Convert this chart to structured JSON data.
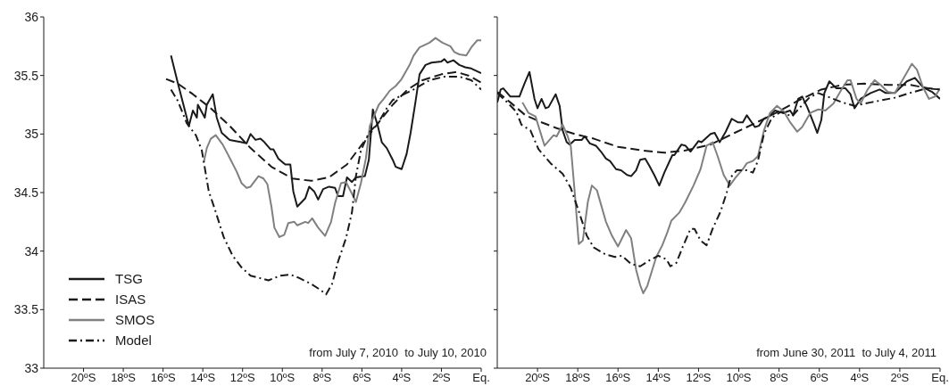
{
  "chart_data": [
    {
      "type": "line",
      "xlim": [
        -22,
        0
      ],
      "ylim": [
        33,
        36
      ],
      "xticks": [
        {
          "value": -20,
          "label": "20ºS"
        },
        {
          "value": -18,
          "label": "18ºS"
        },
        {
          "value": -16,
          "label": "16ºS"
        },
        {
          "value": -14,
          "label": "14ºS"
        },
        {
          "value": -12,
          "label": "12ºS"
        },
        {
          "value": -10,
          "label": "10ºS"
        },
        {
          "value": -8,
          "label": "8ºS"
        },
        {
          "value": -6,
          "label": "6ºS"
        },
        {
          "value": -4,
          "label": "4ºS"
        },
        {
          "value": -2,
          "label": "2ºS"
        },
        {
          "value": 0,
          "label": "Eq."
        }
      ],
      "yticks": [
        33,
        33.5,
        34,
        34.5,
        35,
        35.5,
        36
      ],
      "legend": "bottom left",
      "annotations": [
        "from July 7, 2010  to July 10, 2010"
      ],
      "series": [
        {
          "name": "TSG",
          "color": "#1a1a1a",
          "line_style": "solid",
          "x": [
            -15.6,
            -15.25,
            -14.7,
            -14.5,
            -14.3,
            -14.25,
            -13.9,
            -13.8,
            -13.5,
            -13.3,
            -13.05,
            -12.65,
            -12.05,
            -11.8,
            -11.6,
            -11.35,
            -11.1,
            -10.9,
            -10.6,
            -10.45,
            -10.2,
            -10.0,
            -9.85,
            -9.6,
            -9.45,
            -9.25,
            -8.85,
            -8.65,
            -8.4,
            -8.2,
            -7.95,
            -7.65,
            -7.35,
            -7.2,
            -6.95,
            -6.75,
            -6.5,
            -6.3,
            -5.85,
            -5.65,
            -5.45,
            -5.2,
            -5.0,
            -4.75,
            -4.45,
            -4.3,
            -4.0,
            -3.75,
            -3.55,
            -3.3,
            -3.1,
            -2.8,
            -2.5,
            -2.0,
            -1.85,
            -1.7,
            -1.4,
            -1.1,
            -0.8,
            -0.5,
            0
          ],
          "values": [
            35.67,
            35.43,
            35.07,
            35.2,
            35.14,
            35.25,
            35.14,
            35.25,
            35.34,
            35.14,
            35.01,
            34.95,
            34.93,
            34.92,
            35.0,
            34.95,
            34.96,
            34.93,
            34.87,
            34.87,
            34.79,
            34.76,
            34.74,
            34.74,
            34.51,
            34.38,
            34.45,
            34.55,
            34.51,
            34.44,
            34.53,
            34.55,
            34.54,
            34.47,
            34.47,
            34.63,
            34.59,
            34.63,
            34.64,
            34.78,
            35.21,
            35.07,
            34.93,
            34.88,
            34.78,
            34.72,
            34.7,
            34.83,
            35.01,
            35.28,
            35.51,
            35.59,
            35.61,
            35.62,
            35.64,
            35.61,
            35.63,
            35.59,
            35.57,
            35.56,
            35.52
          ]
        },
        {
          "name": "ISAS",
          "color": "#1a1a1a",
          "line_style": "dashed",
          "x": [
            -15.85,
            -15.25,
            -14.5,
            -13.6,
            -12.65,
            -11.6,
            -10.55,
            -9.5,
            -8.55,
            -7.65,
            -6.75,
            -6.0,
            -5.2,
            -4.45,
            -3.7,
            -2.95,
            -2.0,
            -1.25,
            -0.65,
            0
          ],
          "values": [
            35.47,
            35.43,
            35.34,
            35.22,
            35.07,
            34.88,
            34.72,
            34.62,
            34.6,
            34.63,
            34.74,
            34.91,
            35.09,
            35.25,
            35.38,
            35.46,
            35.51,
            35.53,
            35.5,
            35.44
          ]
        },
        {
          "name": "SMOS",
          "color": "#808080",
          "line_style": "solid",
          "x": [
            -13.95,
            -13.8,
            -13.6,
            -13.35,
            -13.0,
            -12.6,
            -12.3,
            -12.05,
            -11.8,
            -11.6,
            -11.2,
            -10.95,
            -10.75,
            -10.55,
            -10.4,
            -10.15,
            -9.9,
            -9.7,
            -9.4,
            -9.25,
            -8.85,
            -8.7,
            -8.5,
            -8.2,
            -7.85,
            -7.55,
            -7.35,
            -7.05,
            -6.8,
            -6.5,
            -6.3,
            -6.05,
            -5.8,
            -5.6,
            -5.35,
            -5.15,
            -4.9,
            -4.6,
            -4.3,
            -4.0,
            -3.6,
            -3.4,
            -3.1,
            -2.6,
            -2.3,
            -1.95,
            -1.55,
            -1.35,
            -1.1,
            -0.75,
            -0.5,
            -0.2,
            0
          ],
          "values": [
            34.76,
            34.88,
            34.96,
            34.99,
            34.91,
            34.78,
            34.68,
            34.58,
            34.54,
            34.55,
            34.64,
            34.62,
            34.57,
            34.38,
            34.2,
            34.12,
            34.14,
            34.24,
            34.25,
            34.22,
            34.25,
            34.24,
            34.28,
            34.2,
            34.13,
            34.25,
            34.41,
            34.58,
            34.59,
            34.49,
            34.42,
            34.58,
            34.79,
            35.07,
            35.17,
            35.25,
            35.3,
            35.37,
            35.41,
            35.47,
            35.59,
            35.67,
            35.74,
            35.78,
            35.82,
            35.78,
            35.75,
            35.7,
            35.68,
            35.67,
            35.74,
            35.8,
            35.8
          ]
        },
        {
          "name": "Model",
          "color": "#1a1a1a",
          "line_style": "dashdot",
          "x": [
            -15.6,
            -15.25,
            -14.8,
            -14.35,
            -14.05,
            -13.7,
            -13.4,
            -12.95,
            -12.5,
            -12.05,
            -11.6,
            -11.15,
            -10.7,
            -10.1,
            -9.6,
            -9.15,
            -8.55,
            -8.1,
            -7.8,
            -7.5,
            -7.2,
            -6.8,
            -6.5,
            -6.3,
            -6.05,
            -5.65,
            -5.2,
            -4.75,
            -4.45,
            -4.0,
            -3.4,
            -2.6,
            -1.85,
            -1.1,
            -0.5,
            0
          ],
          "values": [
            35.38,
            35.28,
            35.09,
            34.99,
            34.86,
            34.51,
            34.36,
            34.12,
            33.96,
            33.86,
            33.79,
            33.77,
            33.75,
            33.79,
            33.8,
            33.77,
            33.72,
            33.67,
            33.63,
            33.72,
            33.91,
            34.11,
            34.33,
            34.64,
            34.86,
            35.01,
            35.09,
            35.22,
            35.29,
            35.33,
            35.38,
            35.46,
            35.49,
            35.49,
            35.46,
            35.38
          ]
        }
      ]
    },
    {
      "type": "line",
      "xlim": [
        -22,
        0
      ],
      "ylim": [
        33,
        36
      ],
      "tick_labels": "x",
      "xticks": [
        {
          "value": -20,
          "label": "20ºS"
        },
        {
          "value": -18,
          "label": "18ºS"
        },
        {
          "value": -16,
          "label": "16ºS"
        },
        {
          "value": -14,
          "label": "14ºS"
        },
        {
          "value": -12,
          "label": "12ºS"
        },
        {
          "value": -10,
          "label": "10ºS"
        },
        {
          "value": -8,
          "label": "8ºS"
        },
        {
          "value": -6,
          "label": "6ºS"
        },
        {
          "value": -4,
          "label": "4ºS"
        },
        {
          "value": -2,
          "label": "2ºS"
        },
        {
          "value": 0,
          "label": "Eq."
        }
      ],
      "yticks": [
        33,
        33.5,
        34,
        34.5,
        35,
        35.5,
        36
      ],
      "annotations": [
        "from June 30, 2011  to July 4, 2011"
      ],
      "series": [
        {
          "color": "#1a1a1a",
          "line_style": "solid",
          "x": [
            -22.0,
            -21.83,
            -21.7,
            -21.35,
            -20.9,
            -20.65,
            -20.4,
            -20.15,
            -20.0,
            -19.8,
            -19.6,
            -19.45,
            -19.1,
            -18.9,
            -18.75,
            -18.55,
            -18.4,
            -18.15,
            -17.8,
            -17.65,
            -17.4,
            -17.1,
            -16.85,
            -16.6,
            -16.4,
            -16.1,
            -15.85,
            -15.55,
            -15.35,
            -15.1,
            -14.9,
            -14.65,
            -14.45,
            -14.2,
            -13.95,
            -13.7,
            -13.3,
            -13.2,
            -12.85,
            -12.65,
            -12.4,
            -12.0,
            -11.85,
            -11.4,
            -11.2,
            -10.95,
            -10.65,
            -10.35,
            -10.05,
            -9.8,
            -9.6,
            -9.2,
            -9.0,
            -8.75,
            -8.5,
            -8.2,
            -7.8,
            -7.45,
            -7.3,
            -7.05,
            -6.85,
            -6.6,
            -6.3,
            -6.1,
            -5.9,
            -5.75,
            -5.5,
            -5.15,
            -4.7,
            -4.45,
            -4.25,
            -3.95,
            -3.45,
            -3.0,
            -2.7,
            -2.25,
            -1.65,
            -1.25,
            -0.85,
            -0.4,
            0
          ],
          "values": [
            35.27,
            35.38,
            35.39,
            35.32,
            35.32,
            35.43,
            35.53,
            35.3,
            35.22,
            35.3,
            35.22,
            35.23,
            35.34,
            35.24,
            35.03,
            34.93,
            34.91,
            34.95,
            34.95,
            34.98,
            34.92,
            34.9,
            34.85,
            34.79,
            34.77,
            34.7,
            34.69,
            34.65,
            34.64,
            34.69,
            34.78,
            34.79,
            34.73,
            34.65,
            34.56,
            34.67,
            34.82,
            34.82,
            34.91,
            34.9,
            34.85,
            34.94,
            34.93,
            35.0,
            35.01,
            34.93,
            35.02,
            35.13,
            35.1,
            35.1,
            35.16,
            35.06,
            35.07,
            35.13,
            35.15,
            35.2,
            35.18,
            35.2,
            35.16,
            35.3,
            35.32,
            35.23,
            35.1,
            35.01,
            35.12,
            35.35,
            35.45,
            35.39,
            35.39,
            35.34,
            35.22,
            35.3,
            35.35,
            35.38,
            35.35,
            35.35,
            35.45,
            35.48,
            35.4,
            35.36,
            35.3
          ]
        },
        {
          "color": "#1a1a1a",
          "line_style": "dashed",
          "x": [
            -22.0,
            -21.35,
            -20.6,
            -19.8,
            -19.05,
            -18.15,
            -17.2,
            -16.0,
            -14.8,
            -13.7,
            -12.65,
            -11.4,
            -10.2,
            -9.1,
            -8.05,
            -7.0,
            -5.9,
            -4.85,
            -3.75,
            -2.55,
            -1.5,
            -0.55,
            0
          ],
          "values": [
            35.36,
            35.27,
            35.16,
            35.1,
            35.05,
            35.0,
            34.96,
            34.89,
            34.86,
            34.84,
            34.86,
            34.91,
            35.01,
            35.1,
            35.19,
            35.29,
            35.38,
            35.42,
            35.43,
            35.42,
            35.42,
            35.39,
            35.38
          ]
        },
        {
          "color": "#808080",
          "line_style": "solid",
          "x": [
            -20.75,
            -20.45,
            -20.1,
            -19.65,
            -19.2,
            -19.05,
            -18.75,
            -18.5,
            -18.35,
            -18.15,
            -17.95,
            -17.75,
            -17.5,
            -17.3,
            -17.05,
            -16.85,
            -16.6,
            -16.3,
            -16.0,
            -15.8,
            -15.6,
            -15.35,
            -15.1,
            -14.9,
            -14.75,
            -14.55,
            -14.3,
            -14.1,
            -13.8,
            -13.55,
            -13.35,
            -12.95,
            -12.65,
            -12.25,
            -11.9,
            -11.6,
            -11.3,
            -11.05,
            -10.75,
            -10.45,
            -10.15,
            -9.8,
            -9.6,
            -9.3,
            -9.05,
            -8.75,
            -8.45,
            -8.1,
            -7.75,
            -7.45,
            -7.1,
            -6.85,
            -6.45,
            -6.05,
            -5.7,
            -5.3,
            -4.9,
            -4.6,
            -4.45,
            -4.15,
            -3.95,
            -3.6,
            -3.25,
            -2.95,
            -2.6,
            -2.25,
            -1.8,
            -1.4,
            -1.15,
            -0.85,
            -0.55,
            -0.25,
            0
          ],
          "values": [
            35.27,
            35.18,
            35.15,
            34.9,
            34.99,
            34.98,
            35.08,
            34.98,
            34.9,
            34.5,
            34.06,
            34.09,
            34.42,
            34.56,
            34.52,
            34.4,
            34.25,
            34.13,
            34.04,
            34.11,
            34.18,
            34.11,
            33.84,
            33.71,
            33.64,
            33.7,
            33.84,
            33.95,
            34.05,
            34.16,
            34.26,
            34.33,
            34.42,
            34.56,
            34.7,
            34.9,
            34.93,
            34.81,
            34.65,
            34.56,
            34.63,
            34.7,
            34.75,
            34.77,
            34.81,
            35.03,
            35.18,
            35.24,
            35.19,
            35.1,
            35.02,
            35.06,
            35.18,
            35.21,
            35.2,
            35.26,
            35.38,
            35.46,
            35.46,
            35.3,
            35.26,
            35.38,
            35.46,
            35.42,
            35.36,
            35.35,
            35.48,
            35.6,
            35.55,
            35.4,
            35.3,
            35.32,
            35.39
          ]
        },
        {
          "color": "#1a1a1a",
          "line_style": "dashdot",
          "x": [
            -22.0,
            -21.5,
            -21.05,
            -20.8,
            -20.35,
            -19.95,
            -19.35,
            -18.75,
            -18.35,
            -17.95,
            -17.55,
            -17.2,
            -16.6,
            -16.15,
            -15.8,
            -15.35,
            -14.9,
            -14.45,
            -14.0,
            -13.6,
            -13.4,
            -13.1,
            -12.8,
            -12.4,
            -12.2,
            -11.9,
            -11.6,
            -11.3,
            -10.9,
            -10.6,
            -10.4,
            -10.1,
            -9.6,
            -9.3,
            -9.05,
            -8.75,
            -8.35,
            -7.9,
            -7.35,
            -7.0,
            -6.5,
            -6.05,
            -5.45,
            -4.85,
            -4.25,
            -3.45,
            -2.25,
            -1.5,
            -0.7,
            0
          ],
          "values": [
            35.35,
            35.27,
            35.19,
            35.08,
            35.03,
            34.87,
            34.75,
            34.66,
            34.54,
            34.34,
            34.13,
            34.03,
            33.97,
            33.95,
            33.96,
            33.89,
            33.87,
            33.92,
            33.96,
            33.93,
            33.87,
            33.9,
            34.03,
            34.19,
            34.19,
            34.09,
            34.05,
            34.19,
            34.34,
            34.5,
            34.63,
            34.69,
            34.69,
            34.67,
            34.77,
            35.0,
            35.14,
            35.19,
            35.15,
            35.22,
            35.31,
            35.35,
            35.31,
            35.27,
            35.24,
            35.27,
            35.31,
            35.35,
            35.39,
            35.38
          ]
        }
      ]
    }
  ]
}
